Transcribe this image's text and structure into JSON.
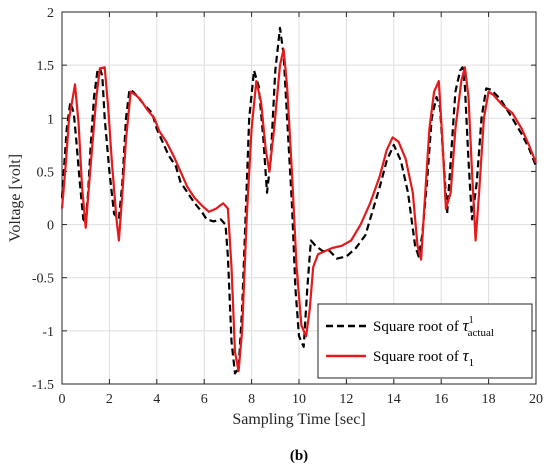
{
  "caption": "(b)",
  "chart_data": {
    "type": "line",
    "xlabel": "Sampling Time [sec]",
    "ylabel": "Voltage [volt]",
    "xlim": [
      0,
      20
    ],
    "ylim": [
      -1.5,
      2
    ],
    "xticks": [
      0,
      2,
      4,
      6,
      8,
      10,
      12,
      14,
      16,
      18,
      20
    ],
    "yticks": [
      -1.5,
      -1,
      -0.5,
      0,
      0.5,
      1,
      1.5,
      2
    ],
    "xtick_labels": [
      "0",
      "2",
      "4",
      "6",
      "8",
      "10",
      "12",
      "14",
      "16",
      "18",
      "20"
    ],
    "ytick_labels": [
      "-1.5",
      "-1",
      "-0.5",
      "0",
      "0.5",
      "1",
      "1.5",
      "2"
    ],
    "grid": true,
    "legend_position": "bottom-right",
    "series": [
      {
        "name_prefix": "Square root of ",
        "name_symbol": "τ",
        "name_sup": "1",
        "name_sub": "actual",
        "color": "#000000",
        "style": "dashed",
        "points": [
          [
            0,
            0.25
          ],
          [
            0.2,
            0.9
          ],
          [
            0.35,
            1.15
          ],
          [
            0.5,
            1.05
          ],
          [
            0.6,
            0.8
          ],
          [
            0.75,
            0.4
          ],
          [
            0.9,
            0.05
          ],
          [
            1.0,
            0.02
          ],
          [
            1.1,
            0.3
          ],
          [
            1.2,
            0.7
          ],
          [
            1.35,
            1.2
          ],
          [
            1.5,
            1.45
          ],
          [
            1.6,
            1.47
          ],
          [
            1.7,
            1.4
          ],
          [
            1.8,
            1.0
          ],
          [
            2.0,
            0.5
          ],
          [
            2.2,
            0.1
          ],
          [
            2.4,
            0.05
          ],
          [
            2.55,
            0.4
          ],
          [
            2.7,
            1.0
          ],
          [
            2.85,
            1.27
          ],
          [
            3.0,
            1.25
          ],
          [
            3.2,
            1.2
          ],
          [
            3.5,
            1.12
          ],
          [
            3.8,
            1.05
          ],
          [
            4.0,
            0.9
          ],
          [
            4.2,
            0.8
          ],
          [
            4.5,
            0.65
          ],
          [
            4.8,
            0.55
          ],
          [
            5.0,
            0.4
          ],
          [
            5.3,
            0.3
          ],
          [
            5.6,
            0.2
          ],
          [
            5.9,
            0.12
          ],
          [
            6.1,
            0.05
          ],
          [
            6.4,
            0.03
          ],
          [
            6.7,
            0.05
          ],
          [
            6.9,
            0.0
          ],
          [
            7.0,
            -0.3
          ],
          [
            7.15,
            -1.1
          ],
          [
            7.3,
            -1.4
          ],
          [
            7.45,
            -1.35
          ],
          [
            7.6,
            -0.8
          ],
          [
            7.75,
            0.1
          ],
          [
            7.9,
            1.0
          ],
          [
            8.1,
            1.45
          ],
          [
            8.3,
            1.3
          ],
          [
            8.5,
            0.8
          ],
          [
            8.65,
            0.3
          ],
          [
            8.8,
            0.6
          ],
          [
            9.0,
            1.45
          ],
          [
            9.2,
            1.85
          ],
          [
            9.35,
            1.6
          ],
          [
            9.5,
            1.0
          ],
          [
            9.7,
            0.2
          ],
          [
            9.85,
            -0.6
          ],
          [
            10.0,
            -1.05
          ],
          [
            10.2,
            -1.15
          ],
          [
            10.35,
            -0.6
          ],
          [
            10.5,
            -0.15
          ],
          [
            10.7,
            -0.2
          ],
          [
            11.0,
            -0.25
          ],
          [
            11.3,
            -0.25
          ],
          [
            11.6,
            -0.32
          ],
          [
            12.0,
            -0.3
          ],
          [
            12.4,
            -0.22
          ],
          [
            12.8,
            -0.1
          ],
          [
            13.0,
            0.05
          ],
          [
            13.4,
            0.35
          ],
          [
            13.7,
            0.6
          ],
          [
            14.0,
            0.75
          ],
          [
            14.3,
            0.6
          ],
          [
            14.6,
            0.3
          ],
          [
            14.9,
            -0.2
          ],
          [
            15.05,
            -0.3
          ],
          [
            15.2,
            -0.1
          ],
          [
            15.4,
            0.4
          ],
          [
            15.6,
            1.0
          ],
          [
            15.8,
            1.2
          ],
          [
            15.95,
            1.1
          ],
          [
            16.1,
            0.6
          ],
          [
            16.25,
            0.1
          ],
          [
            16.4,
            0.6
          ],
          [
            16.6,
            1.25
          ],
          [
            16.8,
            1.45
          ],
          [
            16.9,
            1.48
          ],
          [
            17.0,
            1.3
          ],
          [
            17.15,
            0.6
          ],
          [
            17.3,
            0.05
          ],
          [
            17.5,
            0.4
          ],
          [
            17.7,
            1.0
          ],
          [
            17.9,
            1.28
          ],
          [
            18.1,
            1.27
          ],
          [
            18.5,
            1.18
          ],
          [
            19.0,
            1.0
          ],
          [
            19.4,
            0.85
          ],
          [
            19.7,
            0.72
          ],
          [
            20.0,
            0.55
          ]
        ]
      },
      {
        "name_prefix": "Square root of ",
        "name_symbol": "τ",
        "name_sub": "1",
        "color": "#e41a1c",
        "style": "solid",
        "points": [
          [
            0,
            0.15
          ],
          [
            0.15,
            0.55
          ],
          [
            0.3,
            1.0
          ],
          [
            0.5,
            1.25
          ],
          [
            0.55,
            1.32
          ],
          [
            0.7,
            0.95
          ],
          [
            0.85,
            0.35
          ],
          [
            1.0,
            -0.03
          ],
          [
            1.15,
            0.4
          ],
          [
            1.3,
            0.8
          ],
          [
            1.45,
            1.2
          ],
          [
            1.6,
            1.47
          ],
          [
            1.8,
            1.48
          ],
          [
            1.95,
            1.1
          ],
          [
            2.1,
            0.6
          ],
          [
            2.3,
            0.05
          ],
          [
            2.4,
            -0.15
          ],
          [
            2.55,
            0.3
          ],
          [
            2.7,
            0.8
          ],
          [
            2.9,
            1.25
          ],
          [
            3.1,
            1.22
          ],
          [
            3.3,
            1.18
          ],
          [
            3.6,
            1.08
          ],
          [
            3.9,
            1.0
          ],
          [
            4.1,
            0.88
          ],
          [
            4.4,
            0.78
          ],
          [
            4.7,
            0.65
          ],
          [
            5.0,
            0.5
          ],
          [
            5.3,
            0.35
          ],
          [
            5.6,
            0.25
          ],
          [
            5.9,
            0.18
          ],
          [
            6.2,
            0.12
          ],
          [
            6.5,
            0.15
          ],
          [
            6.8,
            0.2
          ],
          [
            7.0,
            0.15
          ],
          [
            7.15,
            -0.4
          ],
          [
            7.3,
            -1.2
          ],
          [
            7.45,
            -1.38
          ],
          [
            7.6,
            -1.0
          ],
          [
            7.8,
            0.1
          ],
          [
            8.0,
            0.9
          ],
          [
            8.2,
            1.35
          ],
          [
            8.4,
            1.15
          ],
          [
            8.6,
            0.7
          ],
          [
            8.75,
            0.5
          ],
          [
            8.95,
            0.9
          ],
          [
            9.2,
            1.5
          ],
          [
            9.35,
            1.65
          ],
          [
            9.5,
            1.3
          ],
          [
            9.7,
            0.5
          ],
          [
            9.9,
            -0.4
          ],
          [
            10.1,
            -0.95
          ],
          [
            10.3,
            -1.05
          ],
          [
            10.45,
            -0.8
          ],
          [
            10.6,
            -0.4
          ],
          [
            10.8,
            -0.28
          ],
          [
            11.1,
            -0.25
          ],
          [
            11.4,
            -0.22
          ],
          [
            11.8,
            -0.2
          ],
          [
            12.2,
            -0.15
          ],
          [
            12.6,
            0.0
          ],
          [
            13.0,
            0.2
          ],
          [
            13.4,
            0.45
          ],
          [
            13.7,
            0.7
          ],
          [
            13.95,
            0.82
          ],
          [
            14.2,
            0.78
          ],
          [
            14.5,
            0.62
          ],
          [
            14.8,
            0.3
          ],
          [
            15.0,
            -0.2
          ],
          [
            15.15,
            -0.33
          ],
          [
            15.3,
            0.2
          ],
          [
            15.5,
            0.9
          ],
          [
            15.7,
            1.25
          ],
          [
            15.9,
            1.35
          ],
          [
            16.05,
            0.8
          ],
          [
            16.2,
            0.15
          ],
          [
            16.4,
            0.3
          ],
          [
            16.6,
            0.9
          ],
          [
            16.85,
            1.35
          ],
          [
            17.0,
            1.48
          ],
          [
            17.15,
            1.2
          ],
          [
            17.3,
            0.5
          ],
          [
            17.45,
            -0.15
          ],
          [
            17.6,
            0.3
          ],
          [
            17.8,
            1.0
          ],
          [
            18.0,
            1.25
          ],
          [
            18.2,
            1.22
          ],
          [
            18.6,
            1.12
          ],
          [
            19.0,
            1.05
          ],
          [
            19.4,
            0.9
          ],
          [
            19.7,
            0.75
          ],
          [
            20.0,
            0.58
          ]
        ]
      }
    ]
  }
}
